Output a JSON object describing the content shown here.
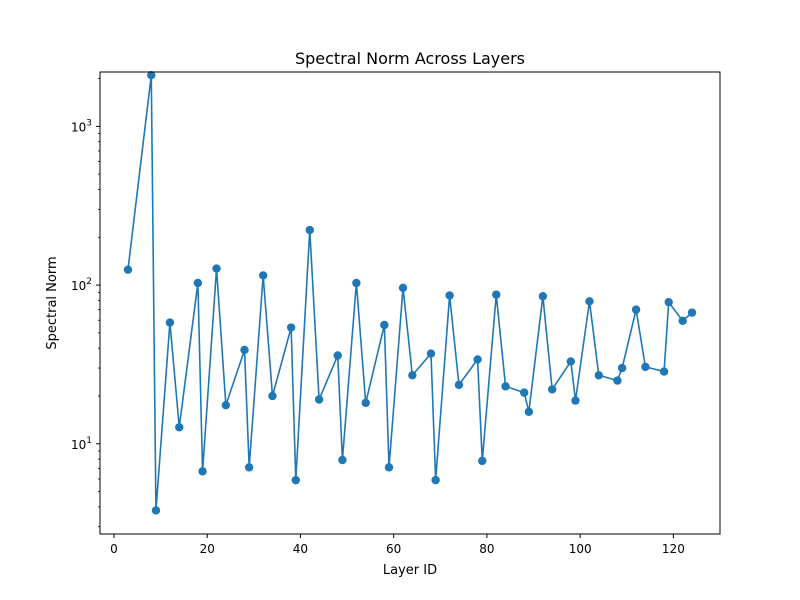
{
  "chart_data": {
    "type": "line",
    "title": "Spectral Norm Across Layers",
    "xlabel": "Layer ID",
    "ylabel": "Spectral Norm",
    "xlim": [
      -3.0,
      130.0
    ],
    "ylim": [
      2.7,
      2200
    ],
    "yscale": "log",
    "grid": false,
    "xticks": [
      0,
      20,
      40,
      60,
      80,
      100,
      120
    ],
    "yticks": [
      {
        "value": 10,
        "base": "10",
        "exp": "1"
      },
      {
        "value": 100,
        "base": "10",
        "exp": "2"
      },
      {
        "value": 1000,
        "base": "10",
        "exp": "3"
      }
    ],
    "series": [
      {
        "color": "#1f77b4",
        "marker": "circle",
        "x": [
          3,
          8,
          9,
          12,
          14,
          18,
          19,
          22,
          24,
          28,
          29,
          32,
          34,
          38,
          39,
          42,
          44,
          48,
          49,
          52,
          54,
          58,
          59,
          62,
          64,
          68,
          69,
          72,
          74,
          78,
          79,
          82,
          84,
          88,
          89,
          92,
          94,
          98,
          99,
          102,
          104,
          108,
          109,
          112,
          114,
          118,
          119,
          122,
          124
        ],
        "y": [
          125,
          2100,
          3.8,
          58,
          12.7,
          103,
          6.7,
          127,
          17.5,
          39,
          7.1,
          115,
          20,
          54,
          5.9,
          222,
          19,
          36,
          7.9,
          103,
          18.1,
          56,
          7.1,
          96,
          27,
          37,
          5.9,
          86,
          23.5,
          34,
          7.8,
          87,
          23,
          21,
          15.9,
          85,
          22,
          33,
          18.7,
          79,
          27,
          25,
          30,
          70,
          30.5,
          28.5,
          78,
          59.5,
          67
        ]
      }
    ]
  }
}
